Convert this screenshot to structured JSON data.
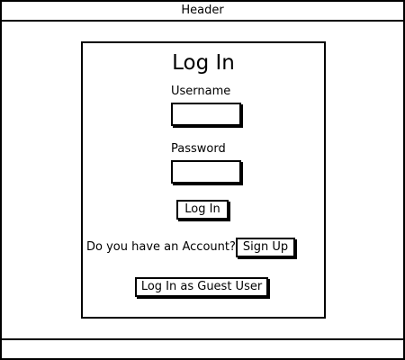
{
  "header": {
    "title": "Header"
  },
  "login_panel": {
    "title": "Log In",
    "username_label": "Username",
    "username_value": "",
    "password_label": "Password",
    "password_value": "",
    "login_button": "Log In",
    "account_prompt": "Do you have an Account?",
    "signup_button": "Sign Up",
    "guest_button": "Log In as Guest User"
  },
  "colors": {
    "border": "#000000",
    "background": "#ffffff"
  }
}
